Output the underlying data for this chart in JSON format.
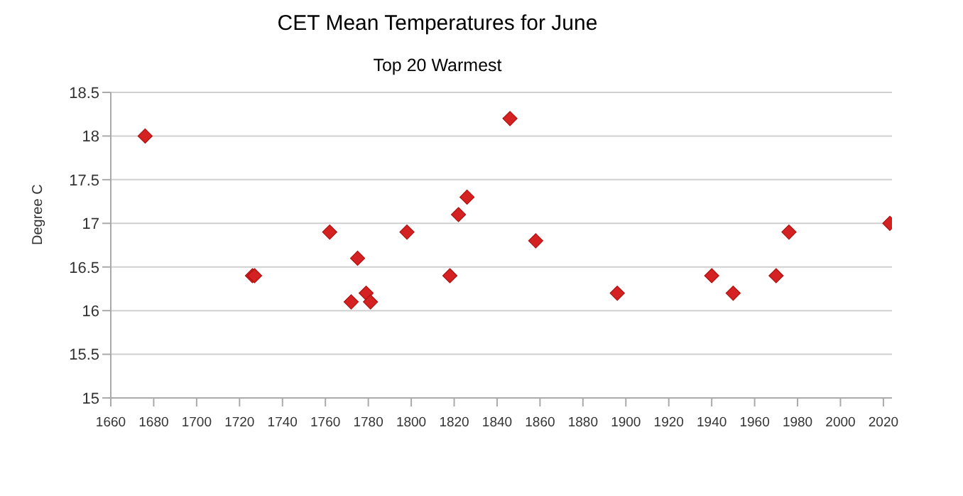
{
  "chart_data": {
    "type": "scatter",
    "title": "CET Mean Temperatures for June",
    "subtitle": "Top 20 Warmest",
    "ylabel": "Degree C",
    "x": [
      1676,
      1726,
      1727,
      1762,
      1772,
      1775,
      1779,
      1781,
      1798,
      1818,
      1822,
      1826,
      1846,
      1858,
      1896,
      1940,
      1950,
      1970,
      1976,
      2023
    ],
    "series": [
      {
        "color": "#d42121",
        "values": [
          18.0,
          16.4,
          16.4,
          16.9,
          16.1,
          16.6,
          16.2,
          16.1,
          16.9,
          16.4,
          17.1,
          17.3,
          18.2,
          16.8,
          16.2,
          16.4,
          16.2,
          16.4,
          16.9,
          17.0
        ]
      }
    ],
    "xlim": [
      1660,
      2024
    ],
    "xticks": [
      1660,
      1680,
      1700,
      1720,
      1740,
      1760,
      1780,
      1800,
      1820,
      1840,
      1860,
      1880,
      1900,
      1920,
      1940,
      1960,
      1980,
      2000,
      2020
    ],
    "ylim": [
      15,
      18.5
    ],
    "yticks": [
      15,
      15.5,
      16,
      16.5,
      17,
      17.5,
      18,
      18.5
    ],
    "grid": "y",
    "marker": "diamond",
    "legend": false
  }
}
